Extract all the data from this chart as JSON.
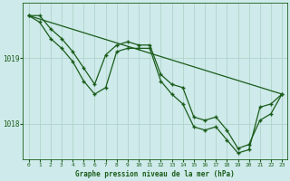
{
  "background_color": "#ceeaea",
  "grid_color": "#b0d4cc",
  "line_color": "#1a5c1a",
  "marker_color": "#1a5c1a",
  "title": "Graphe pression niveau de la mer (hPa)",
  "xlim": [
    -0.5,
    23.5
  ],
  "ylim": [
    1017.45,
    1019.85
  ],
  "yticks": [
    1018,
    1019
  ],
  "xticks": [
    0,
    1,
    2,
    3,
    4,
    5,
    6,
    7,
    8,
    9,
    10,
    11,
    12,
    13,
    14,
    15,
    16,
    17,
    18,
    19,
    20,
    21,
    22,
    23
  ],
  "series": [
    {
      "x": [
        0,
        23
      ],
      "y": [
        1019.65,
        1018.45
      ],
      "marker": false
    },
    {
      "x": [
        0,
        1,
        2,
        3,
        4,
        5,
        6,
        7,
        8,
        9,
        10,
        11,
        12,
        13,
        14,
        15,
        16,
        17,
        18,
        19,
        20,
        21,
        22,
        23
      ],
      "y": [
        1019.65,
        1019.65,
        1019.45,
        1019.3,
        1019.1,
        1018.85,
        1018.6,
        1019.05,
        1019.2,
        1019.25,
        1019.2,
        1019.2,
        1018.75,
        1018.6,
        1018.55,
        1018.1,
        1018.05,
        1018.1,
        1017.9,
        1017.62,
        1017.68,
        1018.05,
        1018.15,
        1018.45
      ],
      "marker": true
    },
    {
      "x": [
        0,
        1,
        2,
        3,
        4,
        5,
        6,
        7,
        8,
        9,
        10,
        11,
        12,
        13,
        14,
        15,
        16,
        17,
        18,
        19,
        20,
        21,
        22,
        23
      ],
      "y": [
        1019.65,
        1019.55,
        1019.3,
        1019.15,
        1018.95,
        1018.65,
        1018.45,
        1018.55,
        1019.1,
        1019.15,
        1019.15,
        1019.15,
        1018.65,
        1018.45,
        1018.3,
        1017.95,
        1017.9,
        1017.95,
        1017.75,
        1017.55,
        1017.6,
        1018.25,
        1018.3,
        1018.45
      ],
      "marker": true
    }
  ]
}
